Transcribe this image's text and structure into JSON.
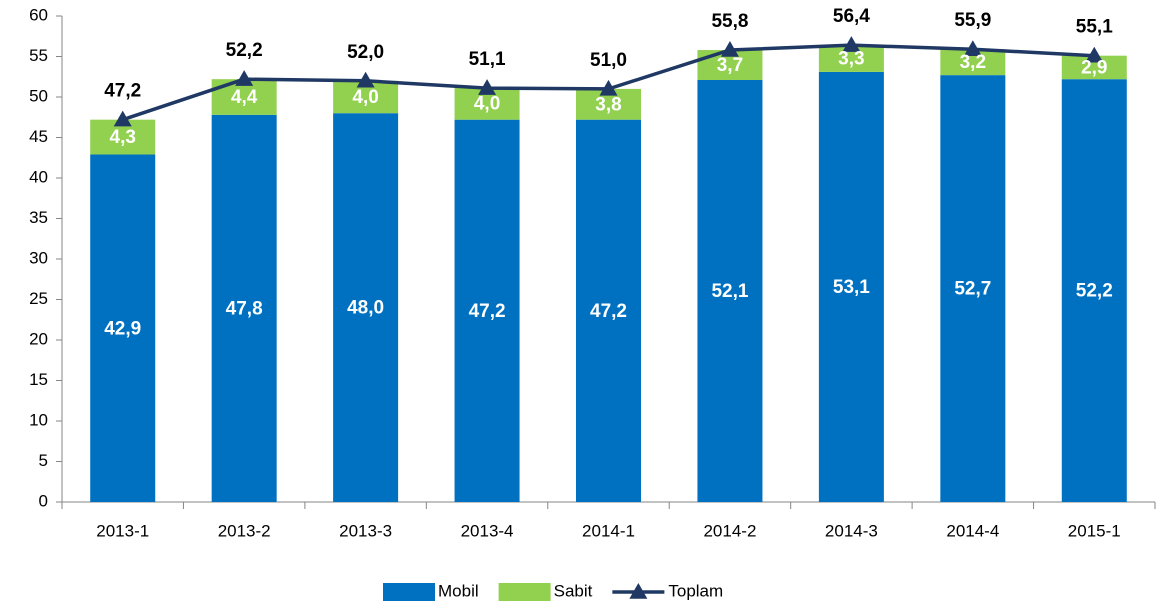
{
  "chart_data": {
    "type": "bar",
    "stacked": true,
    "categories": [
      "2013-1",
      "2013-2",
      "2013-3",
      "2013-4",
      "2014-1",
      "2014-2",
      "2014-3",
      "2014-4",
      "2015-1"
    ],
    "series": [
      {
        "name": "Mobil",
        "color": "#0070c0",
        "values": [
          42.9,
          47.8,
          48.0,
          47.2,
          47.2,
          52.1,
          53.1,
          52.7,
          52.2
        ],
        "value_labels": [
          "42,9",
          "47,8",
          "48,0",
          "47,2",
          "47,2",
          "52,1",
          "53,1",
          "52,7",
          "52,2"
        ]
      },
      {
        "name": "Sabit",
        "color": "#92d050",
        "values": [
          4.3,
          4.4,
          4.0,
          4.0,
          3.8,
          3.7,
          3.3,
          3.2,
          2.9
        ],
        "value_labels": [
          "4,3",
          "4,4",
          "4,0",
          "4,0",
          "3,8",
          "3,7",
          "3,3",
          "3,2",
          "2,9"
        ]
      },
      {
        "name": "Toplam",
        "type": "line",
        "color": "#1f3864",
        "values": [
          47.2,
          52.2,
          52.0,
          51.1,
          51.0,
          55.8,
          56.4,
          55.9,
          55.1
        ],
        "value_labels": [
          "47,2",
          "52,2",
          "52,0",
          "51,1",
          "51,0",
          "55,8",
          "56,4",
          "55,9",
          "55,1"
        ]
      }
    ],
    "ylim": [
      0,
      60
    ],
    "yticks": [
      0,
      5,
      10,
      15,
      20,
      25,
      30,
      35,
      40,
      45,
      50,
      55,
      60
    ],
    "legend": "bottom"
  }
}
